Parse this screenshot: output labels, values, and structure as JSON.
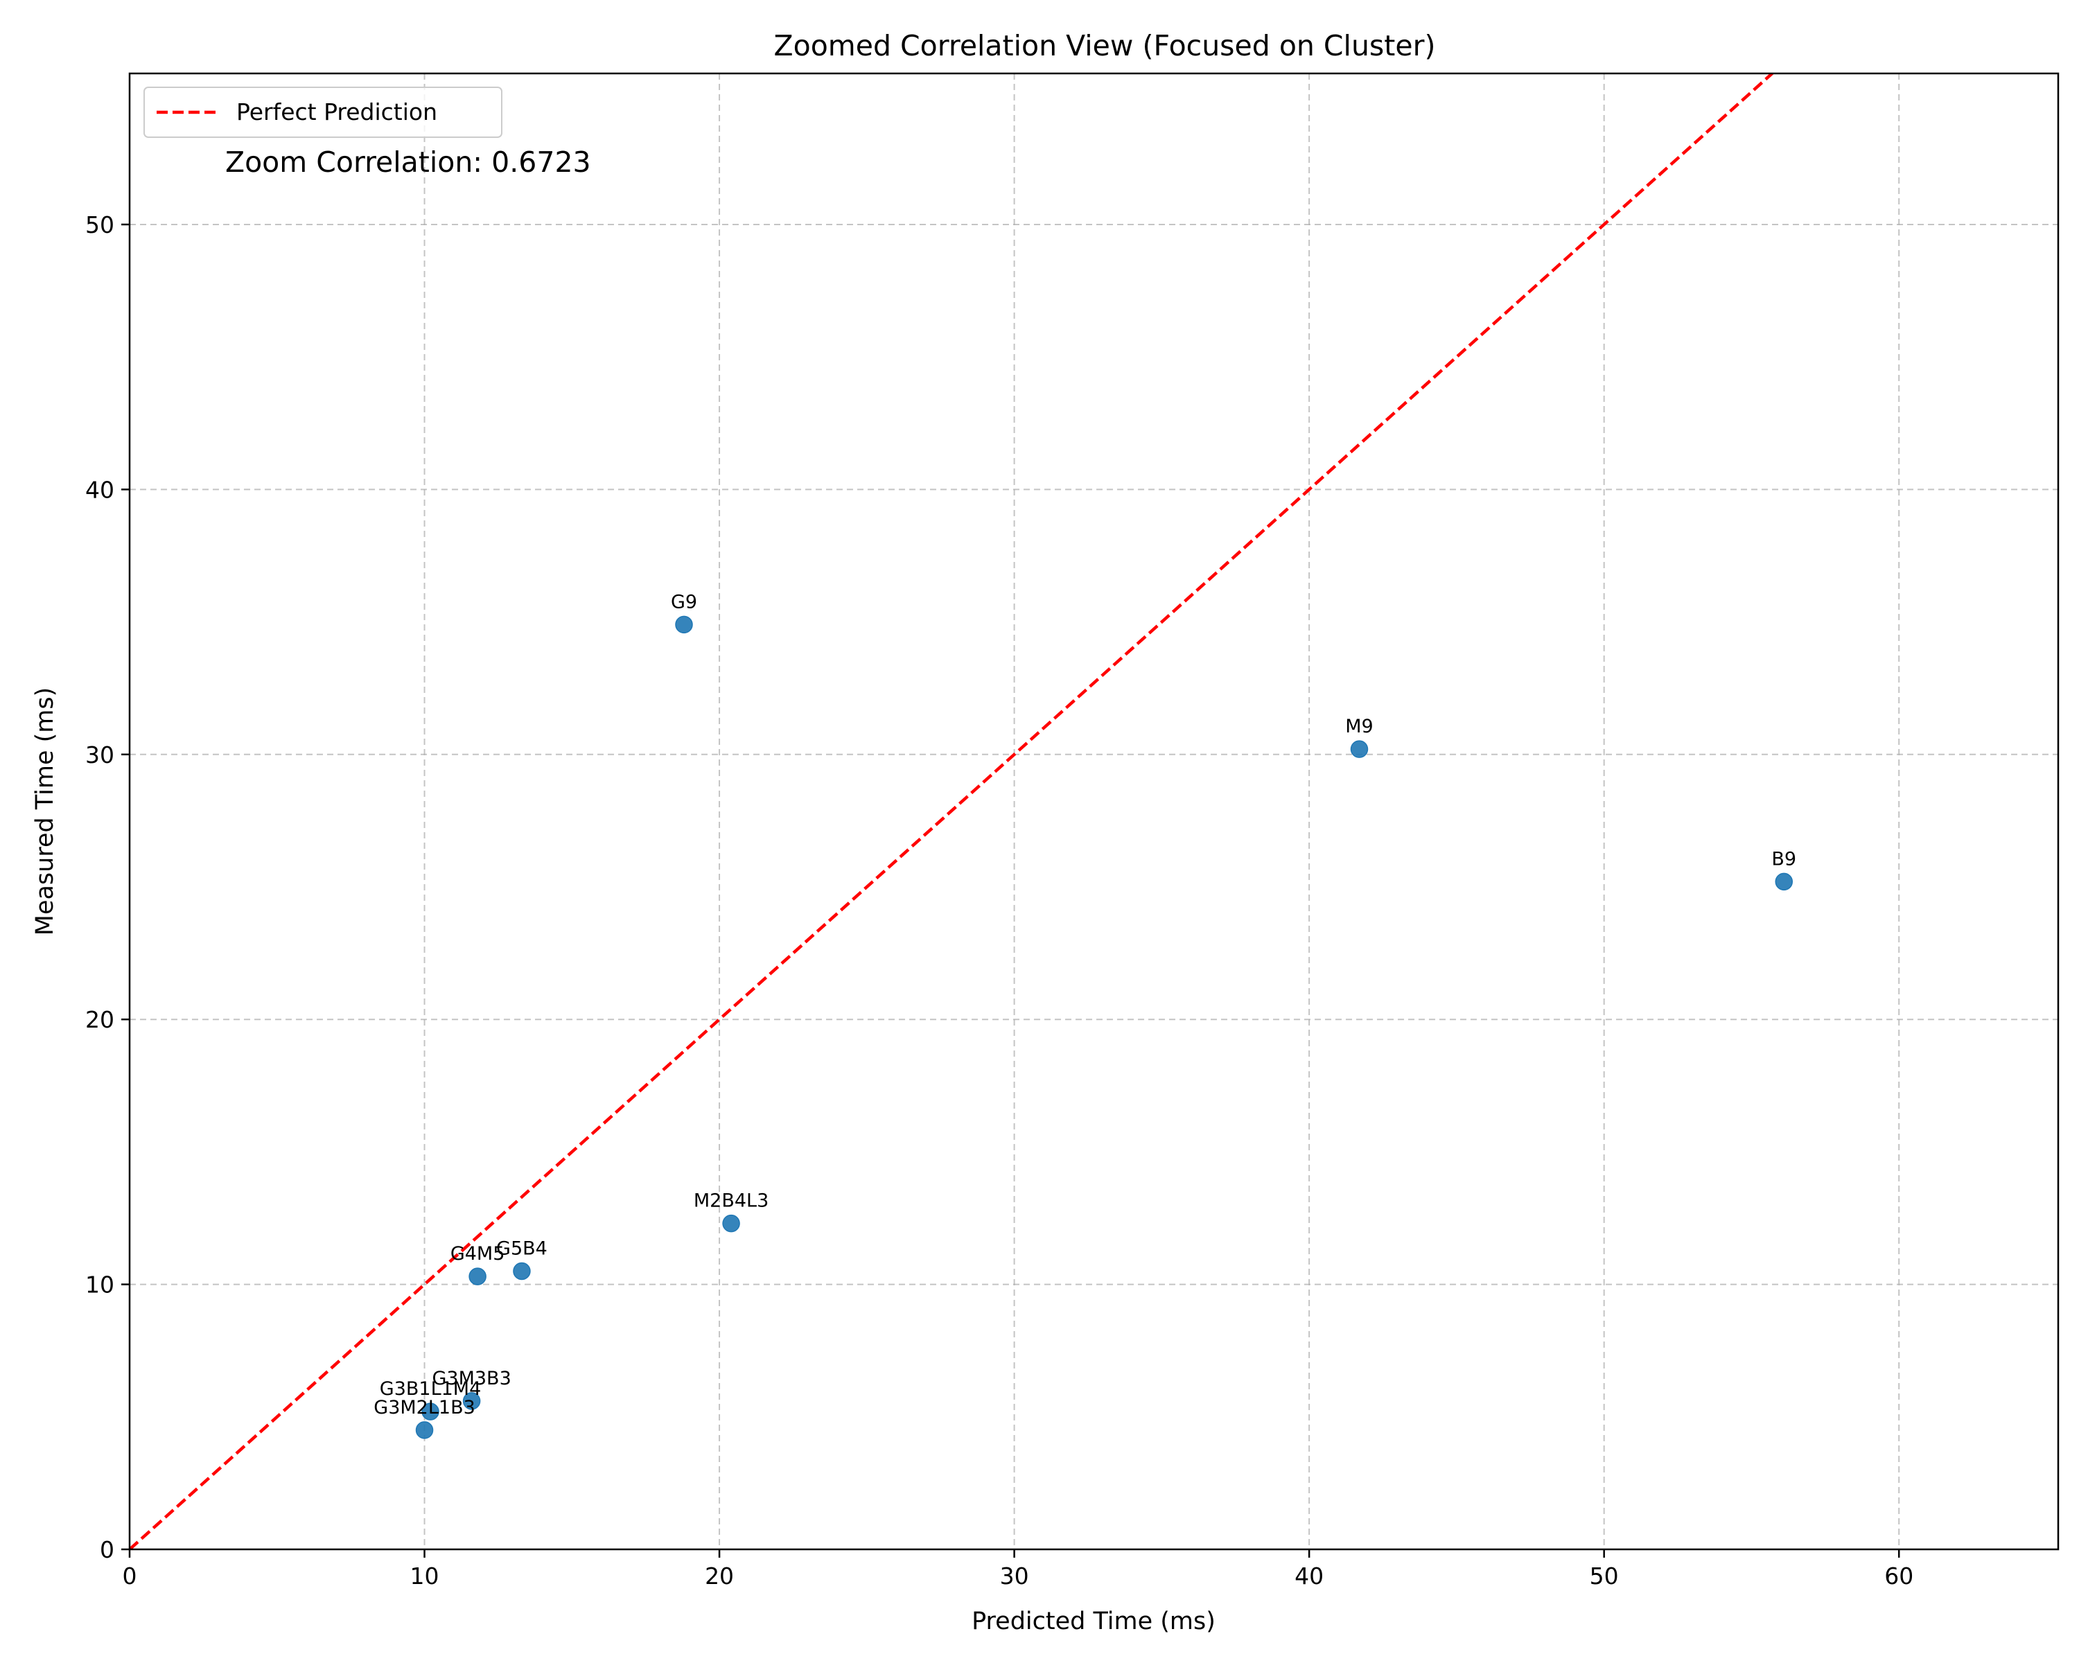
{
  "chart_data": {
    "type": "scatter",
    "title": "Zoomed Correlation View (Focused on Cluster)",
    "xlabel": "Predicted Time (ms)",
    "ylabel": "Measured Time (ms)",
    "xlim": [
      0,
      65.4
    ],
    "ylim": [
      0,
      55.7
    ],
    "xticks": [
      0,
      10,
      20,
      30,
      40,
      50,
      60
    ],
    "yticks": [
      0,
      10,
      20,
      30,
      40,
      50
    ],
    "grid": true,
    "legend": {
      "position": "top-left",
      "entries": [
        "Perfect Prediction"
      ]
    },
    "annotation": "Zoom Correlation: 0.6723",
    "reference_line": {
      "name": "Perfect Prediction",
      "style": "dashed",
      "color": "#ff0000",
      "points": [
        [
          0,
          0
        ],
        [
          65.4,
          65.4
        ]
      ]
    },
    "points": [
      {
        "label": "G9",
        "x": 18.8,
        "y": 34.9
      },
      {
        "label": "M9",
        "x": 41.7,
        "y": 30.2
      },
      {
        "label": "B9",
        "x": 56.1,
        "y": 25.2
      },
      {
        "label": "M2B4L3",
        "x": 20.4,
        "y": 12.3
      },
      {
        "label": "G4M5",
        "x": 11.8,
        "y": 10.3
      },
      {
        "label": "G5B4",
        "x": 13.3,
        "y": 10.5
      },
      {
        "label": "G3M3B3",
        "x": 11.6,
        "y": 5.6
      },
      {
        "label": "G3B1L1M4",
        "x": 10.2,
        "y": 5.2
      },
      {
        "label": "G3M2L1B3",
        "x": 10.0,
        "y": 4.5
      }
    ],
    "colors": {
      "points": "#1f77b4",
      "reference": "#ff0000",
      "grid": "#b0b0b0"
    }
  }
}
